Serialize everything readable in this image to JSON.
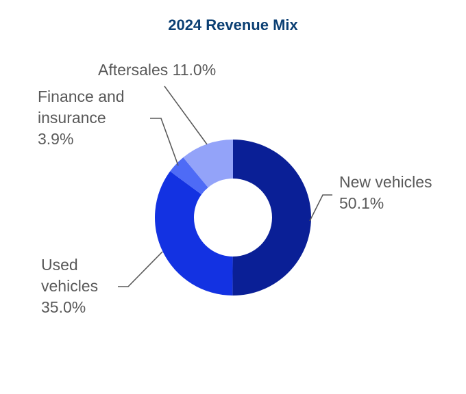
{
  "chart_data": {
    "type": "pie",
    "title": "2024 Revenue Mix",
    "hole": "donut",
    "legend": "none",
    "slices": [
      {
        "label_lines": [
          "New vehicles",
          "50.1%"
        ],
        "name": "New vehicles",
        "value": 50.1,
        "color": "#0a1f96"
      },
      {
        "label_lines": [
          "Used",
          "vehicles",
          "35.0%"
        ],
        "name": "Used vehicles",
        "value": 35.0,
        "color": "#1332e2"
      },
      {
        "label_lines": [
          "Finance and",
          "insurance",
          "3.9%"
        ],
        "name": "Finance and insurance",
        "value": 3.9,
        "color": "#4e6bf6"
      },
      {
        "label_lines": [
          "Aftersales 11.0%"
        ],
        "name": "Aftersales",
        "value": 11.0,
        "color": "#93a3f9"
      }
    ],
    "leader_line_color": "#595959"
  }
}
